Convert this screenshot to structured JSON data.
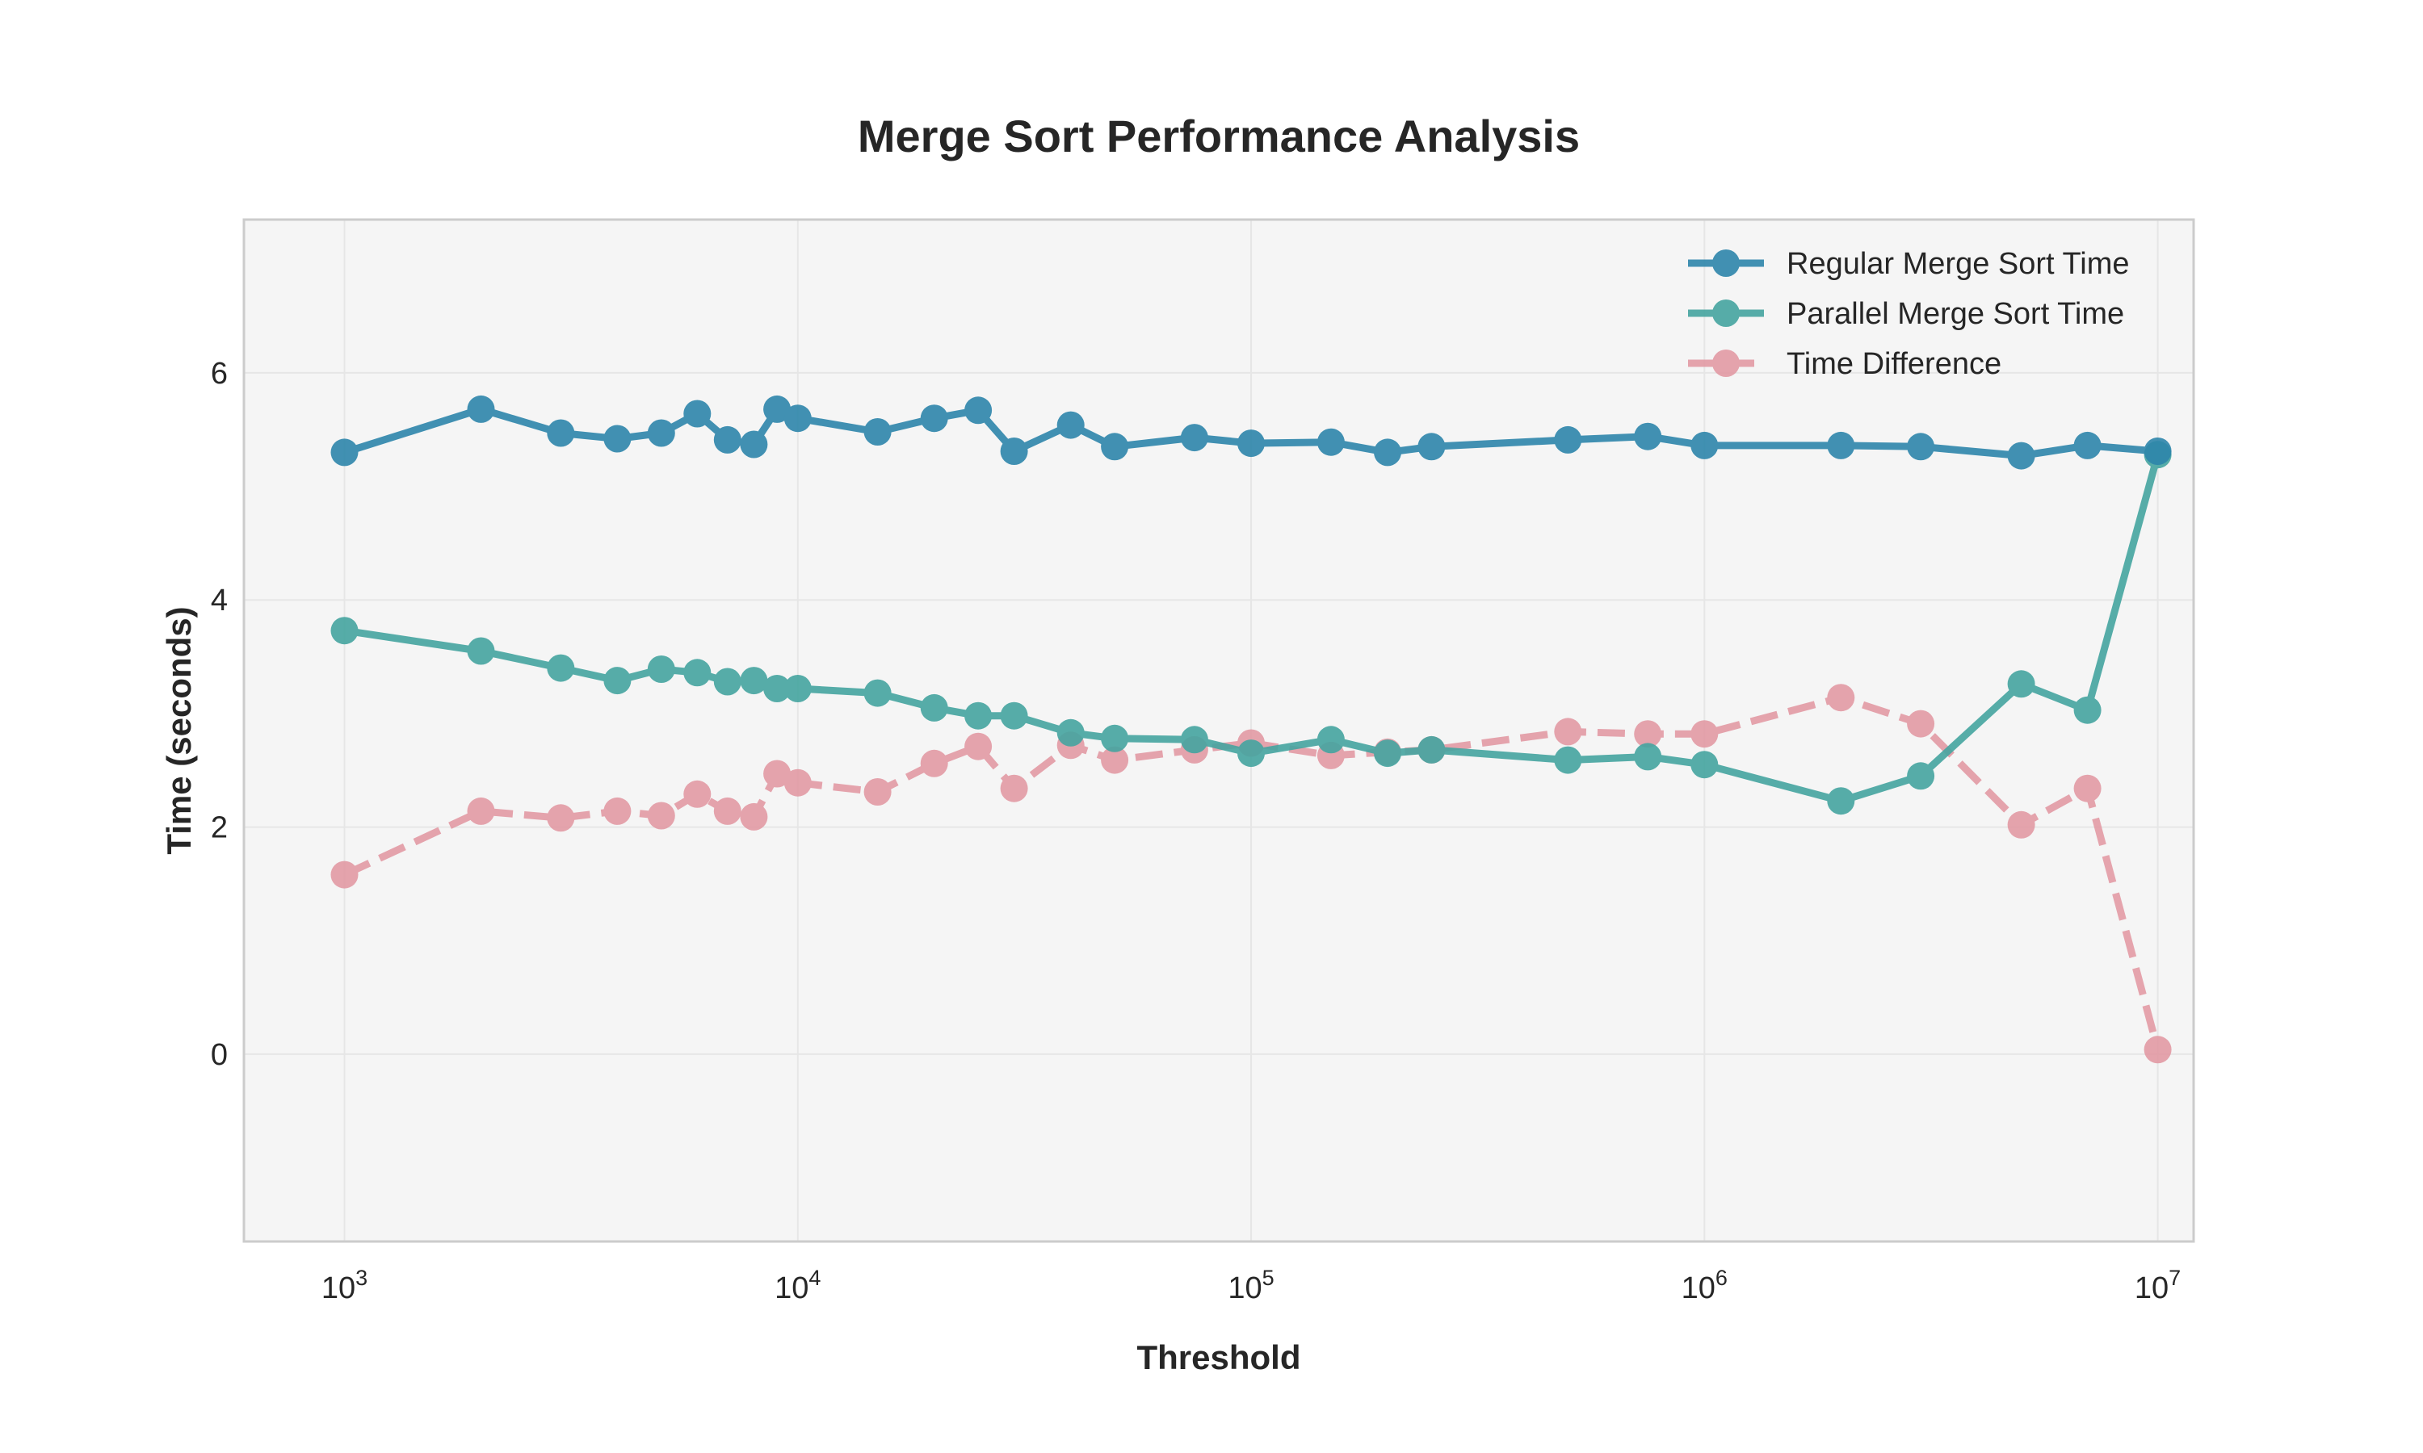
{
  "chart_data": {
    "type": "line",
    "title": "Merge Sort Performance Analysis",
    "xlabel": "Threshold",
    "ylabel": "Time (seconds)",
    "x_scale": "log",
    "xlim": [
      600,
      12000000
    ],
    "ylim": [
      -1.65,
      7.35
    ],
    "x_ticks": [
      {
        "value": 1000,
        "base": "10",
        "exp": "3"
      },
      {
        "value": 10000,
        "base": "10",
        "exp": "4"
      },
      {
        "value": 100000,
        "base": "10",
        "exp": "5"
      },
      {
        "value": 1000000,
        "base": "10",
        "exp": "6"
      },
      {
        "value": 10000000,
        "base": "10",
        "exp": "7"
      }
    ],
    "y_ticks": [
      0,
      2,
      4,
      6
    ],
    "grid": true,
    "legend_position": "top-right",
    "x": [
      1000,
      2000,
      3000,
      4000,
      5000,
      6000,
      7000,
      8000,
      9000,
      10000,
      15000,
      20000,
      25000,
      30000,
      40000,
      50000,
      75000,
      100000,
      150000,
      200000,
      250000,
      500000,
      750000,
      1000000,
      2000000,
      3000000,
      5000000,
      7000000,
      10000000
    ],
    "series": [
      {
        "name": "Regular Merge Sort Time",
        "color": "#2E86AB",
        "style": "solid",
        "values": [
          5.3,
          5.68,
          5.47,
          5.42,
          5.47,
          5.64,
          5.41,
          5.37,
          5.68,
          5.6,
          5.48,
          5.6,
          5.67,
          5.31,
          5.54,
          5.35,
          5.43,
          5.38,
          5.39,
          5.3,
          5.35,
          5.41,
          5.44,
          5.36,
          5.36,
          5.35,
          5.27,
          5.36,
          5.31
        ]
      },
      {
        "name": "Parallel Merge Sort Time",
        "color": "#45A5A0",
        "style": "solid",
        "values": [
          3.73,
          3.55,
          3.4,
          3.29,
          3.39,
          3.36,
          3.28,
          3.29,
          3.22,
          3.22,
          3.18,
          3.05,
          2.98,
          2.98,
          2.83,
          2.78,
          2.77,
          2.65,
          2.77,
          2.65,
          2.68,
          2.59,
          2.62,
          2.55,
          2.23,
          2.45,
          3.26,
          3.03,
          5.28
        ]
      },
      {
        "name": "Time Difference",
        "color": "#E295A0",
        "style": "dashed",
        "values": [
          1.58,
          2.14,
          2.08,
          2.14,
          2.1,
          2.29,
          2.14,
          2.09,
          2.47,
          2.39,
          2.31,
          2.56,
          2.71,
          2.34,
          2.72,
          2.59,
          2.68,
          2.74,
          2.63,
          2.66,
          2.68,
          2.84,
          2.82,
          2.82,
          3.14,
          2.91,
          2.02,
          2.34,
          0.04
        ]
      }
    ]
  }
}
